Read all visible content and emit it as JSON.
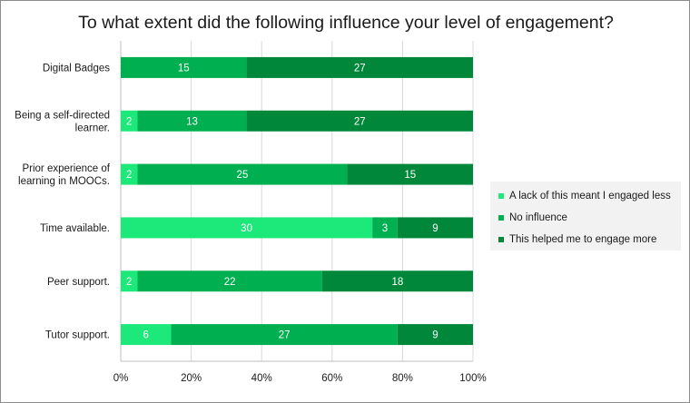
{
  "chart_data": {
    "type": "bar",
    "orientation": "horizontal",
    "stacked": "percent",
    "title": "To what extent did the following influence your level of engagement?",
    "categories": [
      [
        "Digital Badges"
      ],
      [
        "Being a self-directed",
        "learner."
      ],
      [
        "Prior experience of",
        "learning in MOOCs."
      ],
      [
        "Time available."
      ],
      [
        "Peer support."
      ],
      [
        "Tutor support."
      ]
    ],
    "series": [
      {
        "name": "A lack of this meant I engaged less",
        "color": "#1de87a",
        "values": [
          0,
          2,
          2,
          30,
          2,
          6
        ]
      },
      {
        "name": "No influence",
        "color": "#00b050",
        "values": [
          15,
          13,
          25,
          3,
          22,
          27
        ]
      },
      {
        "name": "This helped me to engage more",
        "color": "#00873a",
        "values": [
          27,
          27,
          15,
          9,
          18,
          9
        ]
      }
    ],
    "xlim": [
      0,
      100
    ],
    "xticks": [
      "0%",
      "20%",
      "40%",
      "60%",
      "80%",
      "100%"
    ],
    "grid": true,
    "legend_position": "right"
  }
}
